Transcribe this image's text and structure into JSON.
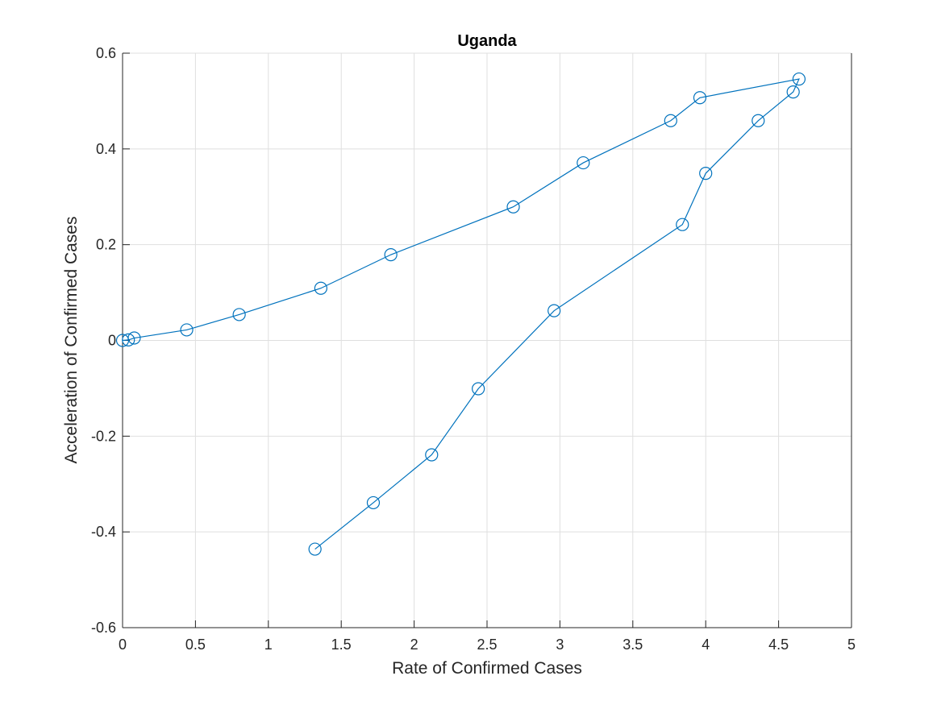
{
  "chart_data": {
    "type": "line",
    "title": "Uganda",
    "xlabel": "Rate of Confirmed Cases",
    "ylabel": "Acceleration of Confirmed Cases",
    "xlim": [
      0,
      5
    ],
    "ylim": [
      -0.6,
      0.6
    ],
    "xticks": [
      0,
      0.5,
      1,
      1.5,
      2,
      2.5,
      3,
      3.5,
      4,
      4.5,
      5
    ],
    "xtick_labels": [
      "0",
      "0.5",
      "1",
      "1.5",
      "2",
      "2.5",
      "3",
      "3.5",
      "4",
      "4.5",
      "5"
    ],
    "yticks": [
      -0.6,
      -0.4,
      -0.2,
      0,
      0.2,
      0.4,
      0.6
    ],
    "ytick_labels": [
      "-0.6",
      "-0.4",
      "-0.2",
      "0",
      "0.2",
      "0.4",
      "0.6"
    ],
    "grid": true,
    "marker": "circle",
    "color": "#0072BD",
    "series": [
      {
        "x": [
          0,
          0.04,
          0.08,
          0.44,
          0.8,
          1.36,
          1.84,
          2.68,
          3.16,
          3.76,
          3.96,
          4.64,
          4.6,
          4.36,
          4.0,
          3.84,
          2.96,
          2.44,
          2.12,
          1.72,
          1.32
        ],
        "y": [
          0,
          0.001,
          0.005,
          0.022,
          0.054,
          0.109,
          0.179,
          0.279,
          0.371,
          0.459,
          0.507,
          0.546,
          0.519,
          0.459,
          0.349,
          0.242,
          0.062,
          -0.101,
          -0.239,
          -0.339,
          -0.436
        ]
      }
    ]
  }
}
